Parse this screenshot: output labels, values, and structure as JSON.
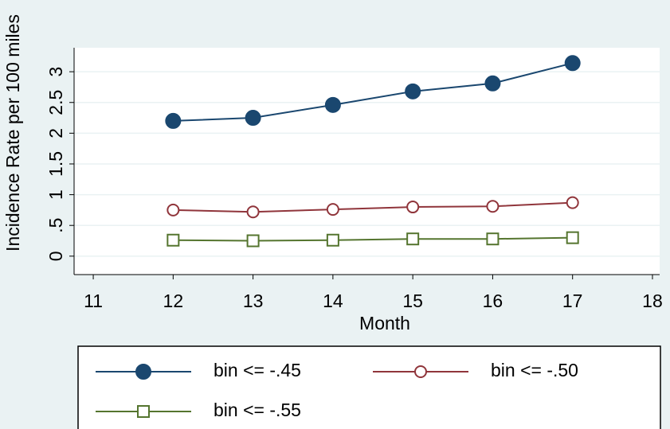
{
  "chart_data": {
    "type": "line",
    "x_label": "Month",
    "y_label": "Incidence Rate per 100 miles",
    "x": [
      12,
      13,
      14,
      15,
      16,
      17
    ],
    "series": [
      {
        "name": "bin <= -.45",
        "color": "#1a476f",
        "marker": "filled-circle",
        "values": [
          2.2,
          2.25,
          2.46,
          2.68,
          2.81,
          3.14
        ]
      },
      {
        "name": "bin <= -.50",
        "color": "#90353b",
        "marker": "hollow-circle",
        "values": [
          0.75,
          0.72,
          0.76,
          0.8,
          0.81,
          0.87
        ]
      },
      {
        "name": "bin <= -.55",
        "color": "#55752f",
        "marker": "hollow-square",
        "values": [
          0.26,
          0.25,
          0.26,
          0.28,
          0.28,
          0.3
        ]
      }
    ],
    "xlim": [
      10.76,
      18.09
    ],
    "xticks": [
      11,
      12,
      13,
      14,
      15,
      16,
      17,
      18
    ],
    "ylim": [
      -0.3,
      3.39
    ],
    "yticks": [
      0,
      {
        "value": 0.5,
        "label": ".5"
      },
      1,
      1.5,
      2,
      2.5,
      3
    ],
    "grid": true,
    "legend": "bottom"
  }
}
